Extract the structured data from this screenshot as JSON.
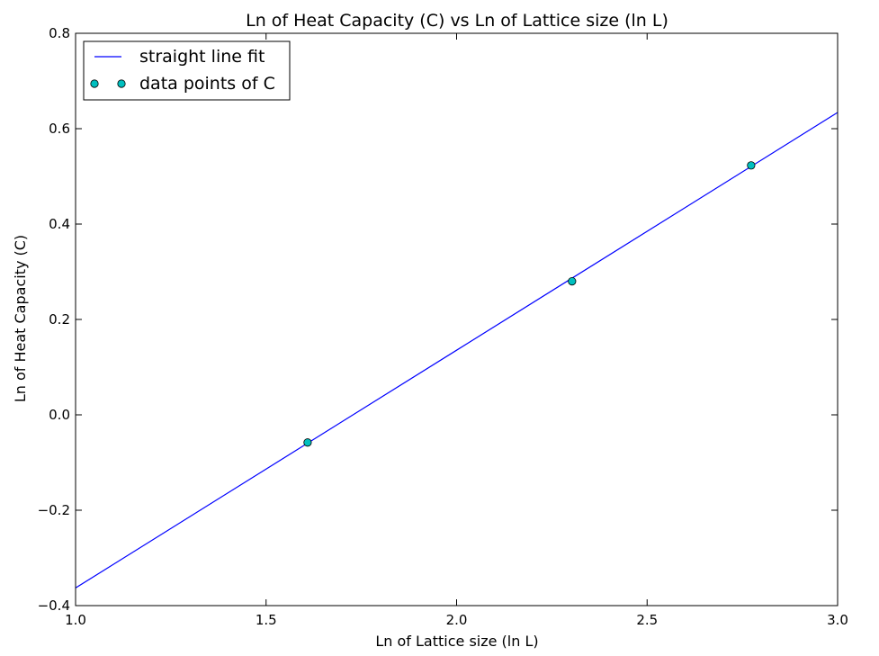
{
  "chart_data": {
    "type": "scatter",
    "title": "Ln of Heat Capacity (C) vs Ln of Lattice size (ln L)",
    "xlabel": "Ln of Lattice size (ln L)",
    "ylabel": "Ln of Heat Capacity (C)",
    "xlim": [
      1.0,
      3.0
    ],
    "ylim": [
      -0.4,
      0.8
    ],
    "xticks": [
      1.0,
      1.5,
      2.0,
      2.5,
      3.0
    ],
    "xtick_labels": [
      "1.0",
      "1.5",
      "2.0",
      "2.5",
      "3.0"
    ],
    "yticks": [
      -0.4,
      -0.2,
      0.0,
      0.2,
      0.4,
      0.6,
      0.8
    ],
    "ytick_labels": [
      "−0.4",
      "−0.2",
      "0.0",
      "0.2",
      "0.4",
      "0.6",
      "0.8"
    ],
    "grid": false,
    "legend_position": "top-left",
    "series": [
      {
        "name": "straight line fit",
        "kind": "line",
        "color": "#0000ff",
        "x": [
          1.0,
          3.0
        ],
        "y": [
          -0.363,
          0.634
        ]
      },
      {
        "name": "data points of C",
        "kind": "scatter",
        "color": "#00bfbf",
        "x": [
          1.609,
          2.303,
          2.773
        ],
        "y": [
          -0.058,
          0.28,
          0.523
        ]
      }
    ]
  }
}
